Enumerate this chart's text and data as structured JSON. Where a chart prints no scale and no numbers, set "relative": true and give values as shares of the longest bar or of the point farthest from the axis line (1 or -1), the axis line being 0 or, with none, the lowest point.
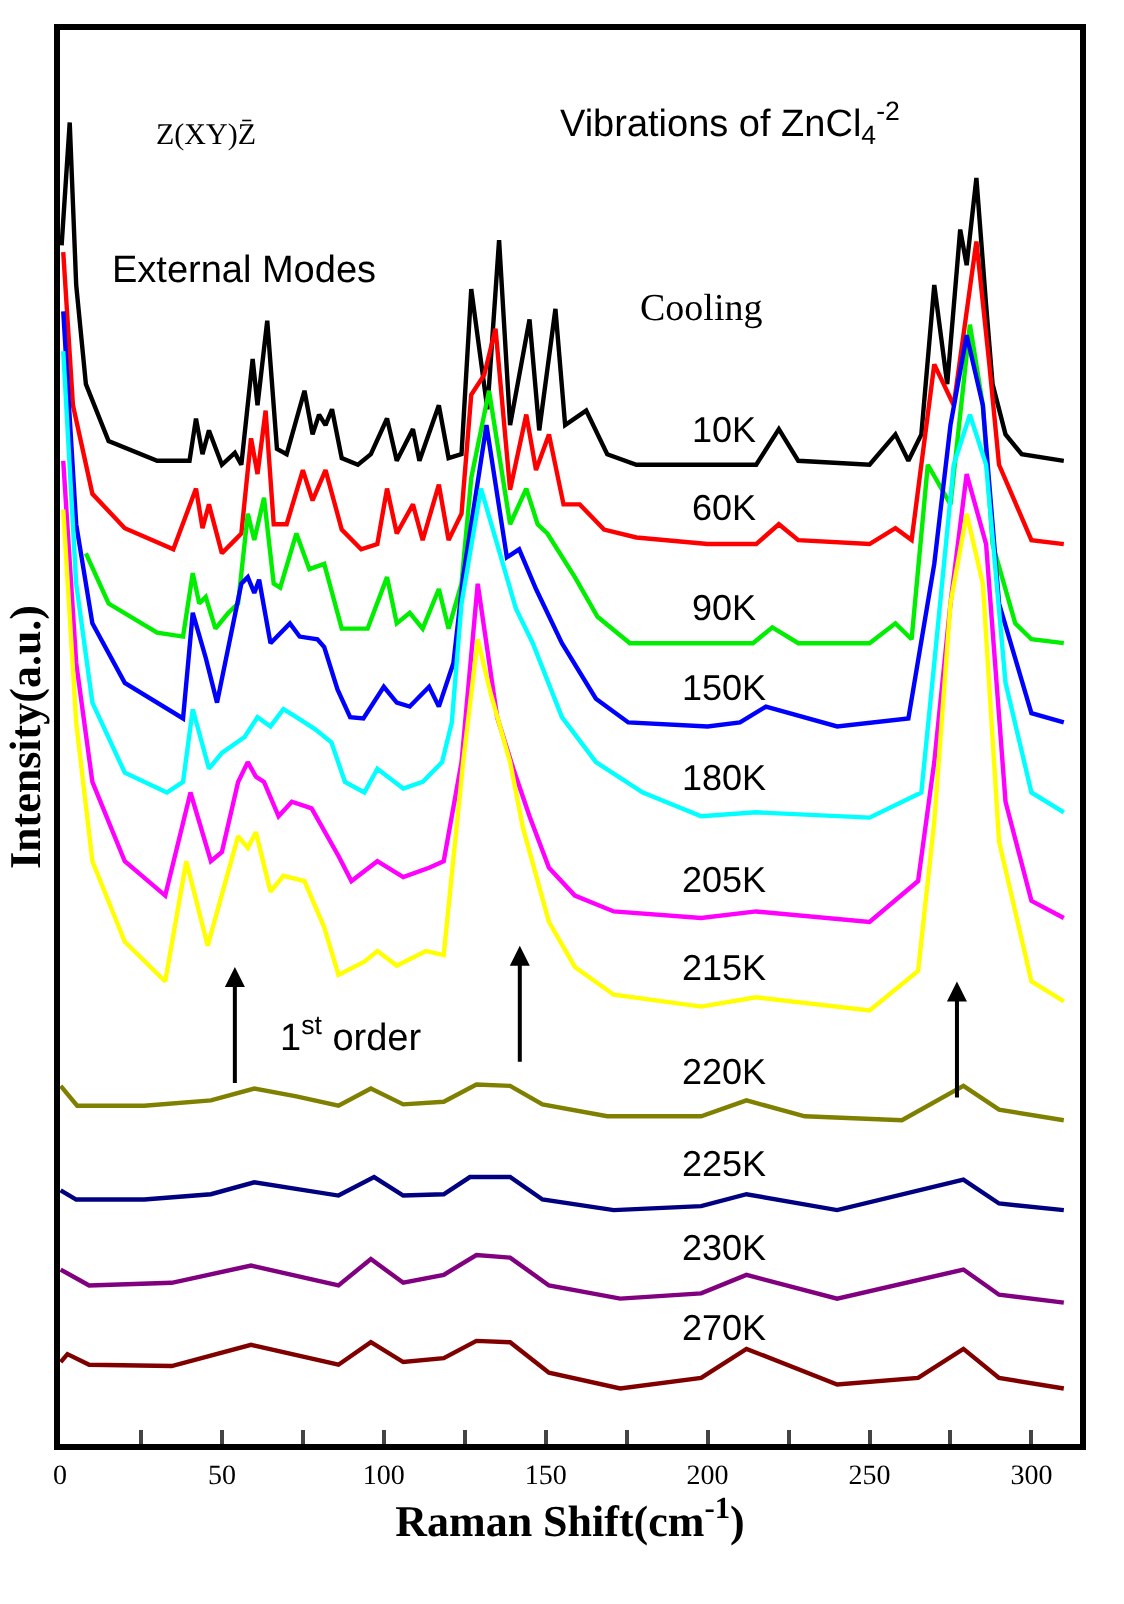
{
  "chart_data": {
    "type": "line",
    "relative": true,
    "xlabel": "Raman Shift(cm$^{-1}$)",
    "ylabel": "Intensity(a.u.)",
    "xlim": [
      0,
      315
    ],
    "xticks": [
      0,
      {
        "value": 25,
        "label": null
      },
      50,
      {
        "value": 75,
        "label": null
      },
      100,
      {
        "value": 125,
        "label": null
      },
      150,
      {
        "value": 175,
        "label": null
      },
      200,
      {
        "value": 225,
        "label": null
      },
      250,
      {
        "value": 275,
        "label": null
      },
      300
    ],
    "legend": false,
    "annotations": [
      "Z(XY)Z̄",
      "Vibrations of ZnCl$_{4}$$^{-2}$",
      "External Modes",
      "Cooling",
      "1$^{st}$ order"
    ],
    "series": [
      {
        "name": "10K",
        "color": "#000000",
        "x": [
          0.5,
          3,
          5,
          8,
          15,
          30,
          40,
          42,
          44,
          46,
          50,
          54,
          56,
          59.5,
          61,
          64,
          67,
          70,
          75.5,
          78,
          80,
          82,
          84,
          87,
          92,
          96,
          101,
          104,
          109,
          111,
          117,
          120,
          124,
          127,
          132,
          135.6,
          139,
          145,
          148,
          153,
          156,
          162.5,
          169,
          178,
          200,
          215,
          222,
          228,
          250,
          258,
          262,
          266,
          270,
          274,
          278,
          280,
          283,
          286,
          288,
          292,
          297,
          310
        ],
        "values": [
          0.907,
          1,
          0.877,
          0.802,
          0.759,
          0.744,
          0.744,
          0.776,
          0.749,
          0.767,
          0.741,
          0.75,
          0.741,
          0.821,
          0.786,
          0.85,
          0.753,
          0.749,
          0.797,
          0.764,
          0.779,
          0.771,
          0.783,
          0.746,
          0.741,
          0.749,
          0.776,
          0.744,
          0.768,
          0.744,
          0.786,
          0.746,
          0.749,
          0.874,
          0.783,
          0.911,
          0.771,
          0.851,
          0.767,
          0.859,
          0.771,
          0.782,
          0.749,
          0.741,
          0.741,
          0.741,
          0.768,
          0.744,
          0.741,
          0.764,
          0.744,
          0.764,
          0.877,
          0.802,
          0.919,
          0.892,
          0.958,
          0.862,
          0.802,
          0.764,
          0.749,
          0.744
        ]
      },
      {
        "name": "60K",
        "color": "#ff0000",
        "x": [
          1,
          4,
          10,
          20,
          35,
          42,
          44,
          46,
          50,
          54,
          56,
          59,
          61,
          63.5,
          66,
          70,
          75,
          78,
          82,
          87,
          93,
          98,
          101,
          104,
          109,
          112,
          117,
          120,
          124,
          127,
          131,
          134.5,
          139,
          144,
          147,
          151,
          155.5,
          160.5,
          168,
          178,
          200,
          215,
          222,
          228,
          250,
          258,
          263,
          270,
          276,
          283,
          287,
          290,
          300,
          310
        ],
        "values": [
          0.902,
          0.786,
          0.719,
          0.693,
          0.677,
          0.723,
          0.693,
          0.711,
          0.674,
          0.684,
          0.689,
          0.761,
          0.734,
          0.782,
          0.696,
          0.696,
          0.737,
          0.714,
          0.737,
          0.692,
          0.677,
          0.681,
          0.723,
          0.689,
          0.711,
          0.684,
          0.726,
          0.684,
          0.704,
          0.794,
          0.809,
          0.844,
          0.722,
          0.779,
          0.737,
          0.764,
          0.711,
          0.711,
          0.692,
          0.686,
          0.681,
          0.681,
          0.696,
          0.684,
          0.681,
          0.693,
          0.684,
          0.817,
          0.786,
          0.91,
          0.817,
          0.741,
          0.684,
          0.681
        ]
      },
      {
        "name": "90K",
        "color": "#00ee00",
        "x": [
          8,
          15,
          30,
          38,
          41,
          43,
          45,
          48,
          52,
          55,
          58,
          60,
          63,
          66,
          68,
          73,
          77,
          81.6,
          87,
          95,
          101,
          104,
          108,
          112,
          117,
          120,
          124,
          127,
          132.5,
          139,
          144,
          147.5,
          150.5,
          159,
          166,
          176,
          200,
          214,
          220,
          228,
          250,
          258,
          263,
          268,
          275,
          281,
          285,
          288,
          295,
          300,
          310
        ],
        "values": [
          0.674,
          0.636,
          0.614,
          0.611,
          0.659,
          0.636,
          0.641,
          0.617,
          0.629,
          0.636,
          0.704,
          0.684,
          0.716,
          0.651,
          0.648,
          0.689,
          0.662,
          0.666,
          0.617,
          0.617,
          0.656,
          0.621,
          0.629,
          0.617,
          0.647,
          0.617,
          0.651,
          0.731,
          0.797,
          0.696,
          0.723,
          0.696,
          0.689,
          0.656,
          0.626,
          0.606,
          0.606,
          0.606,
          0.618,
          0.606,
          0.606,
          0.621,
          0.609,
          0.741,
          0.711,
          0.847,
          0.786,
          0.681,
          0.621,
          0.609,
          0.606
        ]
      },
      {
        "name": "150K",
        "color": "#0000ff",
        "x": [
          1,
          5,
          10,
          20,
          38,
          41,
          45,
          48.5,
          56,
          58,
          60,
          61.5,
          65,
          71,
          74,
          79.5,
          81.6,
          85.7,
          89.6,
          93.7,
          100,
          104,
          108,
          114,
          117,
          121.5,
          124.5,
          131.7,
          138,
          141.8,
          147,
          155,
          165.5,
          175.5,
          200,
          210,
          218,
          240,
          262,
          270,
          275,
          280,
          285,
          290,
          300,
          310
        ],
        "values": [
          0.857,
          0.696,
          0.621,
          0.576,
          0.549,
          0.629,
          0.595,
          0.561,
          0.651,
          0.656,
          0.644,
          0.654,
          0.606,
          0.621,
          0.611,
          0.609,
          0.603,
          0.571,
          0.55,
          0.549,
          0.573,
          0.561,
          0.558,
          0.573,
          0.558,
          0.591,
          0.656,
          0.771,
          0.671,
          0.677,
          0.647,
          0.606,
          0.564,
          0.546,
          0.543,
          0.546,
          0.558,
          0.543,
          0.549,
          0.666,
          0.771,
          0.839,
          0.786,
          0.636,
          0.553,
          0.546
        ]
      },
      {
        "name": "180K",
        "color": "#00ffff",
        "x": [
          1,
          5,
          10,
          20,
          33,
          38,
          41,
          46,
          50,
          57,
          61,
          65,
          69,
          73,
          78.7,
          83.8,
          88,
          94,
          98,
          106,
          112,
          118,
          121,
          124,
          130,
          135,
          140.8,
          146,
          155,
          165.5,
          180,
          198,
          215,
          250,
          266,
          270,
          276,
          281,
          286,
          292,
          300,
          310
        ],
        "values": [
          0.827,
          0.651,
          0.561,
          0.508,
          0.493,
          0.501,
          0.556,
          0.511,
          0.523,
          0.535,
          0.55,
          0.543,
          0.556,
          0.55,
          0.541,
          0.531,
          0.501,
          0.493,
          0.511,
          0.496,
          0.501,
          0.516,
          0.546,
          0.636,
          0.723,
          0.681,
          0.632,
          0.606,
          0.55,
          0.516,
          0.493,
          0.475,
          0.478,
          0.474,
          0.493,
          0.591,
          0.741,
          0.779,
          0.741,
          0.576,
          0.493,
          0.478
        ]
      },
      {
        "name": "205K",
        "color": "#ff00ff",
        "x": [
          1,
          5,
          10,
          20,
          32.5,
          40.3,
          46.6,
          50,
          55,
          58,
          60.5,
          63,
          67.5,
          71.6,
          77.7,
          86,
          90,
          98,
          106,
          114,
          118.5,
          124,
          129,
          135,
          140,
          145,
          151,
          159,
          171,
          198,
          215,
          250,
          265,
          270,
          275,
          280,
          286,
          292,
          300,
          310
        ],
        "values": [
          0.744,
          0.591,
          0.501,
          0.441,
          0.415,
          0.493,
          0.441,
          0.448,
          0.501,
          0.516,
          0.505,
          0.501,
          0.475,
          0.486,
          0.481,
          0.445,
          0.426,
          0.441,
          0.429,
          0.436,
          0.441,
          0.516,
          0.651,
          0.55,
          0.511,
          0.475,
          0.436,
          0.415,
          0.403,
          0.398,
          0.403,
          0.395,
          0.426,
          0.516,
          0.636,
          0.734,
          0.681,
          0.486,
          0.411,
          0.398
        ]
      },
      {
        "name": "215K",
        "color": "#ffff00",
        "x": [
          1,
          5,
          10,
          20,
          32.5,
          39,
          45.6,
          55,
          58,
          60.5,
          65,
          69,
          75.5,
          81.6,
          86,
          94,
          98,
          104,
          113,
          118.5,
          124.5,
          129,
          133,
          139,
          143,
          151,
          159,
          171,
          198,
          215,
          250,
          265,
          270,
          275,
          280,
          285,
          290,
          300,
          310
        ],
        "values": [
          0.707,
          0.546,
          0.441,
          0.38,
          0.35,
          0.441,
          0.377,
          0.46,
          0.451,
          0.463,
          0.418,
          0.43,
          0.426,
          0.391,
          0.355,
          0.365,
          0.373,
          0.362,
          0.373,
          0.37,
          0.516,
          0.609,
          0.568,
          0.516,
          0.466,
          0.395,
          0.361,
          0.34,
          0.331,
          0.338,
          0.328,
          0.358,
          0.471,
          0.636,
          0.704,
          0.651,
          0.456,
          0.35,
          0.335
        ]
      },
      {
        "name": "220K",
        "color": "#808000",
        "x": [
          0.2,
          5.3,
          26,
          46.6,
          60,
          73,
          86,
          96,
          106,
          118.5,
          128.6,
          139,
          149,
          169,
          198,
          212,
          230,
          260,
          279,
          290,
          310
        ],
        "values": [
          0.271,
          0.256,
          0.256,
          0.26,
          0.269,
          0.263,
          0.256,
          0.269,
          0.257,
          0.259,
          0.272,
          0.271,
          0.257,
          0.248,
          0.248,
          0.26,
          0.248,
          0.245,
          0.271,
          0.253,
          0.245
        ]
      },
      {
        "name": "225K",
        "color": "#000080",
        "x": [
          0.2,
          5,
          26,
          46.6,
          60,
          86,
          97,
          106,
          118.5,
          126.6,
          139,
          149,
          171,
          198,
          212,
          240,
          279,
          290,
          310
        ],
        "values": [
          0.192,
          0.185,
          0.185,
          0.189,
          0.198,
          0.188,
          0.202,
          0.188,
          0.189,
          0.202,
          0.202,
          0.185,
          0.177,
          0.18,
          0.189,
          0.177,
          0.2,
          0.182,
          0.177
        ]
      },
      {
        "name": "230K",
        "color": "#800080",
        "x": [
          0.2,
          9,
          34.5,
          59,
          86,
          96,
          106,
          118.5,
          128.6,
          139,
          151,
          173,
          198,
          212,
          240,
          279,
          290,
          310
        ],
        "values": [
          0.132,
          0.12,
          0.122,
          0.135,
          0.12,
          0.14,
          0.122,
          0.128,
          0.143,
          0.141,
          0.12,
          0.11,
          0.114,
          0.128,
          0.11,
          0.132,
          0.113,
          0.107
        ]
      },
      {
        "name": "270K",
        "color": "#800000",
        "x": [
          0.2,
          2.3,
          9,
          34.5,
          59,
          86,
          96,
          106,
          118.5,
          128.6,
          139,
          151,
          173,
          198,
          212,
          240,
          265,
          279,
          290,
          310
        ],
        "values": [
          0.062,
          0.068,
          0.06,
          0.059,
          0.075,
          0.06,
          0.077,
          0.062,
          0.065,
          0.078,
          0.077,
          0.054,
          0.042,
          0.05,
          0.072,
          0.045,
          0.05,
          0.072,
          0.05,
          0.042
        ]
      }
    ]
  }
}
